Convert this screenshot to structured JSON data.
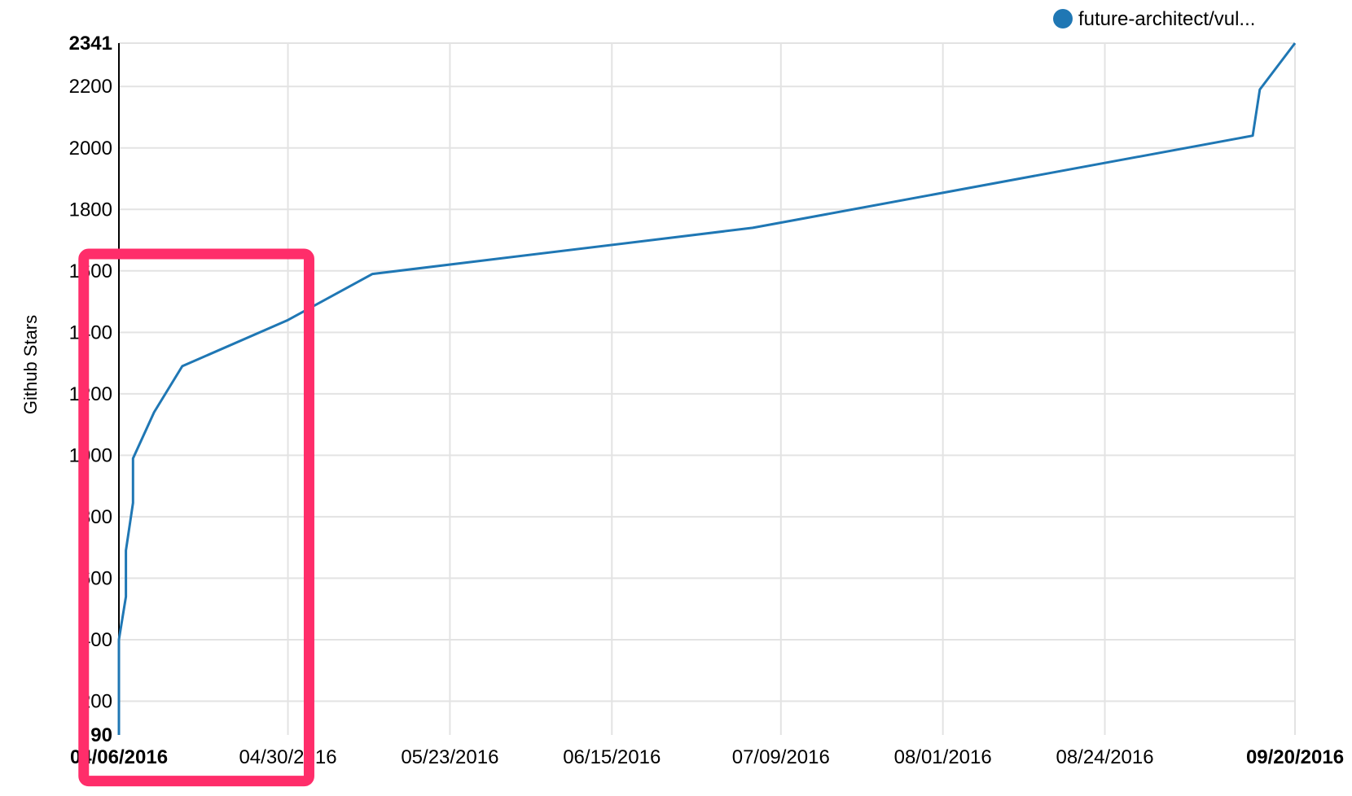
{
  "chart_data": {
    "type": "line",
    "title": "",
    "xlabel": "",
    "ylabel": "Github Stars",
    "x_type": "date",
    "xlim": [
      "2016-04-06",
      "2016-09-20"
    ],
    "ylim": [
      90,
      2341
    ],
    "x_ticks": [
      {
        "date": "2016-04-06",
        "label": "04/06/2016",
        "bold": true
      },
      {
        "date": "2016-04-30",
        "label": "04/30/2016",
        "bold": false
      },
      {
        "date": "2016-05-23",
        "label": "05/23/2016",
        "bold": false
      },
      {
        "date": "2016-06-15",
        "label": "06/15/2016",
        "bold": false
      },
      {
        "date": "2016-07-09",
        "label": "07/09/2016",
        "bold": false
      },
      {
        "date": "2016-08-01",
        "label": "08/01/2016",
        "bold": false
      },
      {
        "date": "2016-08-24",
        "label": "08/24/2016",
        "bold": false
      },
      {
        "date": "2016-09-20",
        "label": "09/20/2016",
        "bold": true
      }
    ],
    "y_ticks": [
      {
        "value": 90,
        "label": "90",
        "bold": true
      },
      {
        "value": 200,
        "label": "200",
        "bold": false
      },
      {
        "value": 400,
        "label": "400",
        "bold": false
      },
      {
        "value": 600,
        "label": "600",
        "bold": false
      },
      {
        "value": 800,
        "label": "800",
        "bold": false
      },
      {
        "value": 1000,
        "label": "1000",
        "bold": false
      },
      {
        "value": 1200,
        "label": "1200",
        "bold": false
      },
      {
        "value": 1400,
        "label": "1400",
        "bold": false
      },
      {
        "value": 1600,
        "label": "1600",
        "bold": false
      },
      {
        "value": 1800,
        "label": "1800",
        "bold": false
      },
      {
        "value": 2000,
        "label": "2000",
        "bold": false
      },
      {
        "value": 2200,
        "label": "2200",
        "bold": false
      },
      {
        "value": 2341,
        "label": "2341",
        "bold": true
      }
    ],
    "grid": true,
    "legend": "top-right",
    "series": [
      {
        "name": "future-architect/vul...",
        "color": "#1f77b4",
        "points": [
          {
            "x": "2016-04-06",
            "y": 90
          },
          {
            "x": "2016-04-06",
            "y": 400
          },
          {
            "x": "2016-04-07",
            "y": 540
          },
          {
            "x": "2016-04-07",
            "y": 690
          },
          {
            "x": "2016-04-08",
            "y": 845
          },
          {
            "x": "2016-04-08",
            "y": 990
          },
          {
            "x": "2016-04-11",
            "y": 1140
          },
          {
            "x": "2016-04-15",
            "y": 1290
          },
          {
            "x": "2016-04-30",
            "y": 1440
          },
          {
            "x": "2016-05-12",
            "y": 1590
          },
          {
            "x": "2016-07-05",
            "y": 1740
          },
          {
            "x": "2016-09-14",
            "y": 2040
          },
          {
            "x": "2016-09-15",
            "y": 2190
          },
          {
            "x": "2016-09-20",
            "y": 2341
          }
        ]
      }
    ],
    "annotations": [
      {
        "type": "highlight-box",
        "color": "#ff2d6a",
        "x_range": [
          "2016-04-01",
          "2016-05-03"
        ],
        "y_range": [
          -60,
          1655
        ]
      }
    ]
  }
}
